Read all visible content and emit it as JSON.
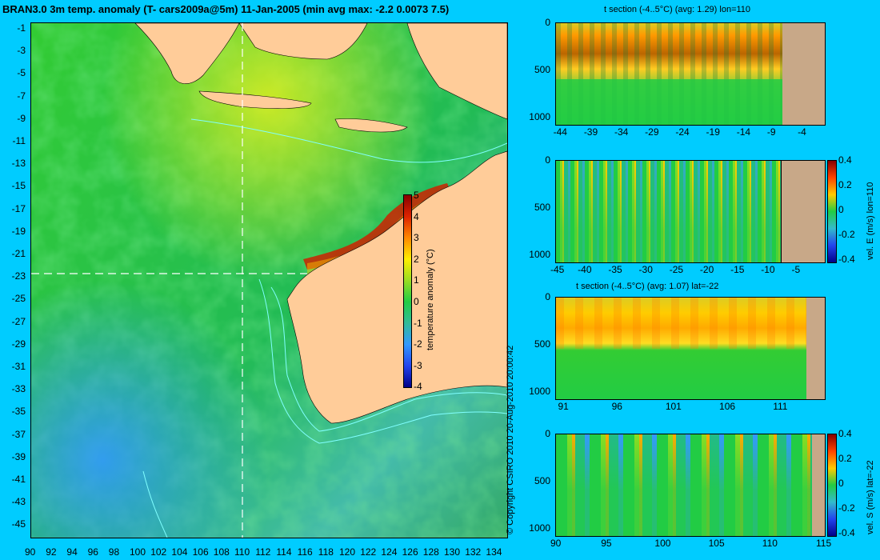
{
  "main_title": "BRAN3.0 3m temp. anomaly (T- cars2009a@5m) 11-Jan-2005 (min avg max: -2.2 0.0073 7.5)",
  "copyright": "© Copyright CSIRO 2010   20-Aug-2010 20:00:42",
  "colors": {
    "background": "#00ccff",
    "land": "#ffcc99",
    "section_land": "#c8a888",
    "contour": "#80ffff"
  },
  "chart_data": [
    {
      "type": "heatmap",
      "title": "BRAN3.0 3m temp. anomaly (T- cars2009a@5m) 11-Jan-2005 (min avg max: -2.2 0.0073 7.5)",
      "xlabel": "",
      "ylabel": "",
      "x_ticks": [
        "90",
        "92",
        "94",
        "96",
        "98",
        "100",
        "102",
        "104",
        "106",
        "108",
        "110",
        "112",
        "114",
        "116",
        "118",
        "120",
        "122",
        "124",
        "126",
        "128",
        "130",
        "132",
        "134"
      ],
      "y_ticks": [
        "-1",
        "-3",
        "-5",
        "-7",
        "-9",
        "-11",
        "-13",
        "-15",
        "-17",
        "-19",
        "-21",
        "-23",
        "-25",
        "-27",
        "-29",
        "-31",
        "-33",
        "-35",
        "-37",
        "-39",
        "-41",
        "-43",
        "-45"
      ],
      "xlim": [
        90,
        135
      ],
      "ylim": [
        -45,
        0
      ],
      "colorbar": {
        "label": "temperature anomaly (°C)",
        "ticks": [
          "5",
          "4",
          "3",
          "2",
          "1",
          "0",
          "-1",
          "-2",
          "-3",
          "-4"
        ],
        "range": [
          -4,
          5
        ]
      },
      "min": -2.2,
      "avg": 0.0073,
      "max": 7.5,
      "crosshair": {
        "lon": 110,
        "lat": -22
      }
    },
    {
      "type": "heatmap",
      "title": "t section (-4..5°C) (avg: 1.29) lon=110",
      "x_ticks": [
        "-44",
        "-39",
        "-34",
        "-29",
        "-24",
        "-19",
        "-14",
        "-9",
        "-4"
      ],
      "y_ticks": [
        "0",
        "500",
        "1000"
      ],
      "xlim": [
        -45,
        -1
      ],
      "ylim": [
        0,
        1050
      ],
      "avg": 1.29,
      "land_from": -8.5
    },
    {
      "type": "heatmap",
      "title": "",
      "x_ticks": [
        "-45",
        "-40",
        "-35",
        "-30",
        "-25",
        "-20",
        "-15",
        "-10",
        "-5"
      ],
      "y_ticks": [
        "0",
        "500",
        "1000"
      ],
      "xlim": [
        -45,
        -1
      ],
      "ylim": [
        0,
        1050
      ],
      "land_from": -8.5,
      "colorbar": {
        "label": "vel. E (m/s) lon=110",
        "ticks": [
          "0.4",
          "0.2",
          "0",
          "-0.2",
          "-0.4"
        ],
        "range": [
          -0.4,
          0.4
        ]
      }
    },
    {
      "type": "heatmap",
      "title": "t section (-4..5°C) (avg: 1.07) lat=-22",
      "x_ticks": [
        "91",
        "96",
        "101",
        "106",
        "111"
      ],
      "y_ticks": [
        "0",
        "500",
        "1000"
      ],
      "xlim": [
        90,
        115
      ],
      "ylim": [
        0,
        1050
      ],
      "avg": 1.07,
      "land_from": 113.8
    },
    {
      "type": "heatmap",
      "title": "",
      "x_ticks": [
        "90",
        "95",
        "100",
        "105",
        "110",
        "115"
      ],
      "y_ticks": [
        "0",
        "500",
        "1000"
      ],
      "xlim": [
        90,
        115
      ],
      "ylim": [
        0,
        1050
      ],
      "land_from": 113.8,
      "colorbar": {
        "label": "vel. S (m/s) lat=-22",
        "ticks": [
          "0.4",
          "0.2",
          "0",
          "-0.2",
          "-0.4"
        ],
        "range": [
          -0.4,
          0.4
        ]
      }
    }
  ]
}
